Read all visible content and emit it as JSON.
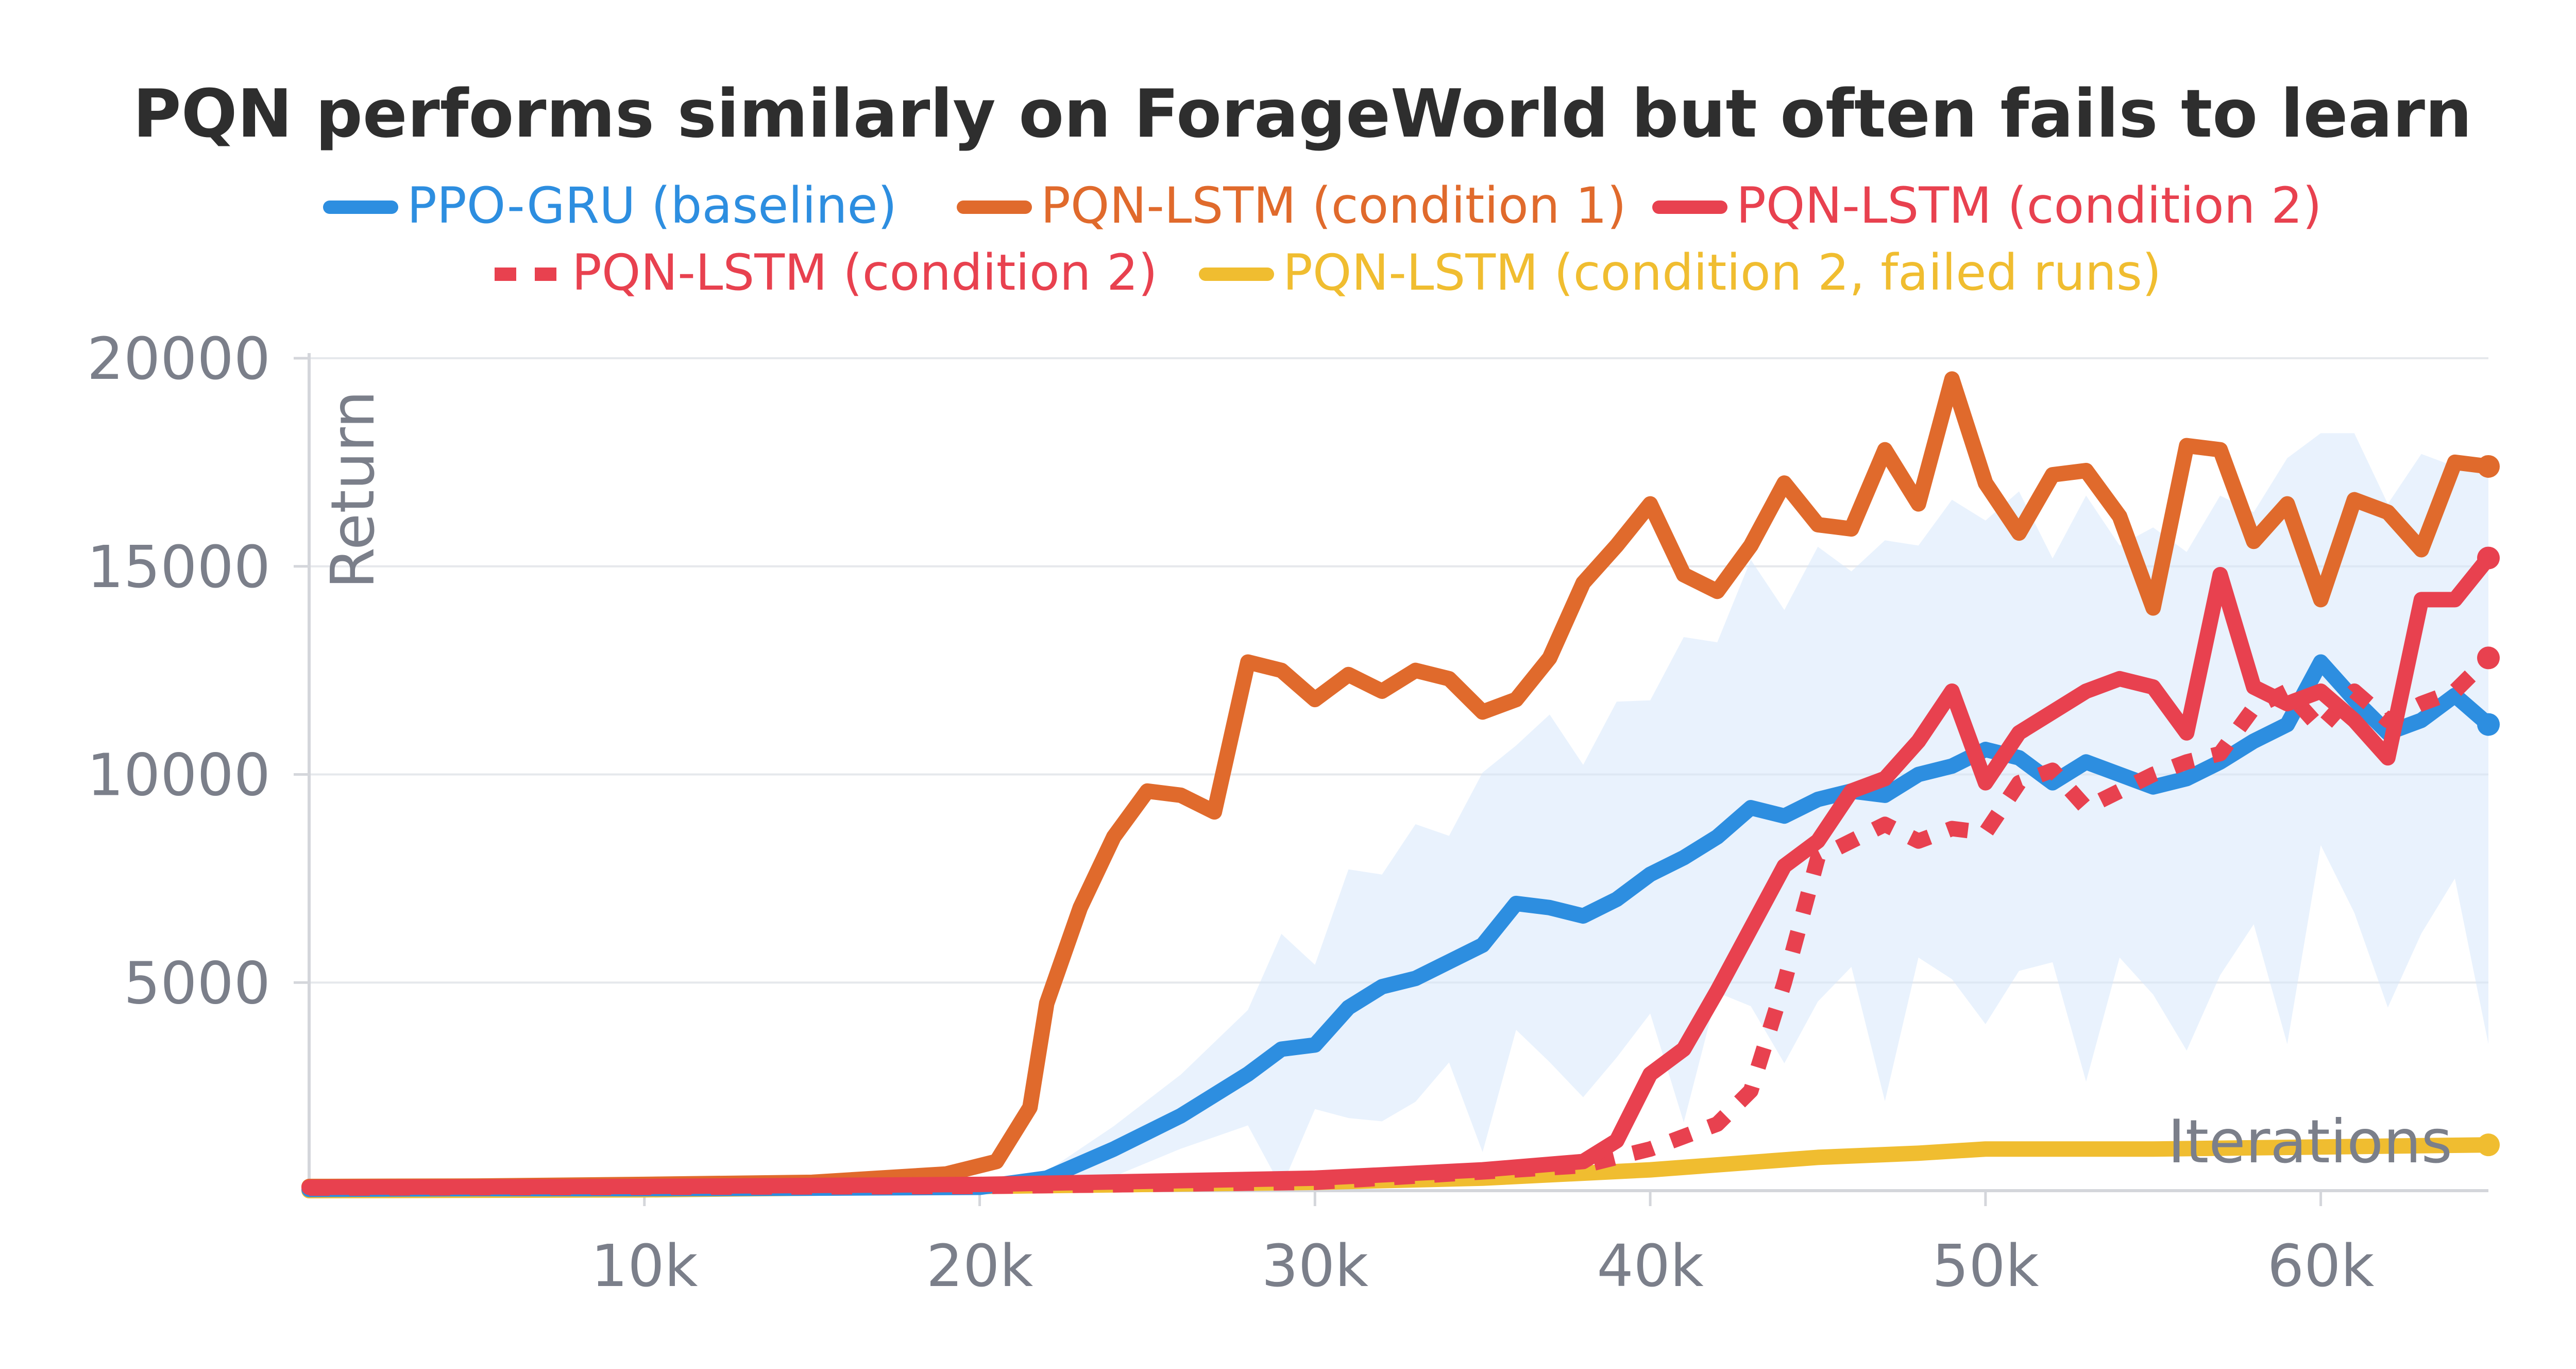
{
  "chart_data": {
    "type": "line",
    "title": "PQN performs similarly on ForageWorld but often fails to learn",
    "xlabel": "Iterations",
    "ylabel": "Return",
    "xlim": [
      0,
      65000
    ],
    "ylim": [
      0,
      20000
    ],
    "x_ticks": [
      10000,
      20000,
      30000,
      40000,
      50000,
      60000
    ],
    "x_tick_labels": [
      "10k",
      "20k",
      "30k",
      "40k",
      "50k",
      "60k"
    ],
    "y_ticks": [
      5000,
      10000,
      15000,
      20000
    ],
    "y_tick_labels": [
      "5000",
      "10000",
      "15000",
      "20000"
    ],
    "grid": true,
    "legend_position": "top-center",
    "series": [
      {
        "name": "PPO-GRU (baseline)",
        "color": "#2d8ee0",
        "style": "solid",
        "x": [
          0,
          5000,
          10000,
          15000,
          20000,
          22000,
          24000,
          26000,
          28000,
          29000,
          30000,
          31000,
          32000,
          33000,
          34000,
          35000,
          36000,
          37000,
          38000,
          39000,
          40000,
          41000,
          42000,
          43000,
          44000,
          45000,
          46000,
          47000,
          48000,
          49000,
          50000,
          51000,
          52000,
          53000,
          54000,
          55000,
          56000,
          57000,
          58000,
          59000,
          60000,
          61000,
          62000,
          63000,
          64000,
          65000
        ],
        "values": [
          30,
          50,
          50,
          60,
          80,
          300,
          1000,
          1800,
          2800,
          3400,
          3500,
          4400,
          4900,
          5100,
          5500,
          5900,
          6900,
          6800,
          6600,
          7000,
          7600,
          8000,
          8500,
          9200,
          9000,
          9400,
          9600,
          9500,
          10000,
          10200,
          10600,
          10400,
          9800,
          10300,
          10000,
          9700,
          9900,
          10300,
          10800,
          11200,
          12700,
          11800,
          11000,
          11300,
          11900,
          11200
        ]
      },
      {
        "name": "PQN-LSTM (condition 1)",
        "color": "#e06a2c",
        "style": "solid",
        "x": [
          0,
          5000,
          10000,
          15000,
          19000,
          20500,
          21500,
          22000,
          23000,
          24000,
          25000,
          26000,
          27000,
          28000,
          29000,
          30000,
          31000,
          32000,
          33000,
          34000,
          35000,
          36000,
          37000,
          38000,
          39000,
          40000,
          41000,
          42000,
          43000,
          44000,
          45000,
          46000,
          47000,
          48000,
          49000,
          50000,
          51000,
          52000,
          53000,
          54000,
          55000,
          56000,
          57000,
          58000,
          59000,
          60000,
          61000,
          62000,
          63000,
          64000,
          65000
        ],
        "values": [
          100,
          110,
          150,
          200,
          400,
          700,
          2000,
          4500,
          6800,
          8500,
          9600,
          9500,
          9100,
          12700,
          12500,
          11800,
          12400,
          12000,
          12500,
          12300,
          11500,
          11800,
          12800,
          14600,
          15500,
          16500,
          14800,
          14400,
          15500,
          17000,
          16000,
          15900,
          17800,
          16500,
          19500,
          17000,
          15800,
          17200,
          17300,
          16200,
          14000,
          17900,
          17800,
          15600,
          16500,
          14200,
          16600,
          16300,
          15400,
          17500,
          17400
        ]
      },
      {
        "name": "PQN-LSTM (condition 2)",
        "color": "#e8414f",
        "style": "solid",
        "x": [
          0,
          10000,
          20000,
          30000,
          35000,
          38000,
          39000,
          40000,
          41000,
          42000,
          43000,
          44000,
          45000,
          46000,
          47000,
          48000,
          49000,
          50000,
          51000,
          52000,
          53000,
          54000,
          55000,
          56000,
          57000,
          58000,
          59000,
          60000,
          61000,
          62000,
          63000,
          64000,
          65000
        ],
        "values": [
          80,
          100,
          150,
          300,
          500,
          700,
          1200,
          2800,
          3400,
          4800,
          6300,
          7800,
          8400,
          9600,
          9900,
          10800,
          12000,
          9800,
          11000,
          11500,
          12000,
          12300,
          12100,
          11000,
          14800,
          12100,
          11700,
          12000,
          11300,
          10400,
          14200,
          14200,
          15200
        ]
      },
      {
        "name": "PQN-LSTM (condition 2)",
        "color": "#e8414f",
        "style": "dashed",
        "x": [
          0,
          10000,
          20000,
          30000,
          38000,
          40000,
          42000,
          43000,
          44000,
          45000,
          46000,
          47000,
          48000,
          49000,
          50000,
          51000,
          52000,
          53000,
          54000,
          55000,
          56000,
          57000,
          58000,
          59000,
          60000,
          61000,
          62000,
          63000,
          64000,
          65000
        ],
        "values": [
          60,
          80,
          100,
          200,
          600,
          1000,
          1600,
          2400,
          5000,
          8000,
          8400,
          8800,
          8400,
          8700,
          8600,
          9800,
          10100,
          9200,
          9600,
          10000,
          10300,
          10500,
          11600,
          12000,
          11100,
          12000,
          11300,
          11700,
          12000,
          12800
        ]
      },
      {
        "name": "PQN-LSTM (condition 2, failed runs)",
        "color": "#f0bd30",
        "style": "solid",
        "x": [
          0,
          10000,
          20000,
          30000,
          35000,
          40000,
          45000,
          48000,
          50000,
          55000,
          60000,
          65000
        ],
        "values": [
          0,
          20,
          100,
          200,
          300,
          500,
          800,
          900,
          1000,
          1000,
          1050,
          1100
        ]
      }
    ]
  }
}
